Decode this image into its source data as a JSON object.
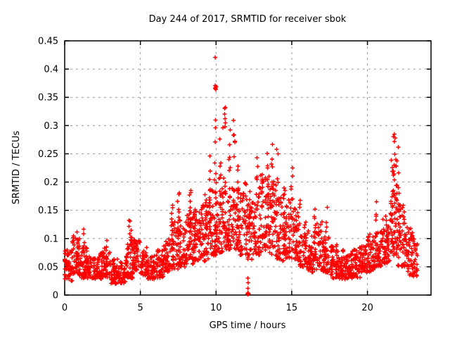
{
  "chart_data": {
    "type": "scatter",
    "title": "Day 244 of 2017, SRMTID for receiver sbok",
    "xlabel": "GPS time / hours",
    "ylabel": "SRMTID / TECUs",
    "xlim": [
      0,
      24.2
    ],
    "ylim": [
      0,
      0.45
    ],
    "xticks": [
      [
        0,
        "0"
      ],
      [
        5,
        "5"
      ],
      [
        10,
        "10"
      ],
      [
        15,
        "15"
      ],
      [
        20,
        "20"
      ]
    ],
    "yticks": [
      [
        0,
        "0"
      ],
      [
        0.05,
        "0.05"
      ],
      [
        0.1,
        "0.1"
      ],
      [
        0.15,
        "0.15"
      ],
      [
        0.2,
        "0.2"
      ],
      [
        0.25,
        "0.25"
      ],
      [
        0.3,
        "0.3"
      ],
      [
        0.35,
        "0.35"
      ],
      [
        0.4,
        "0.4"
      ],
      [
        0.45,
        "0.45"
      ]
    ],
    "grid": true,
    "legend": "none",
    "marker": {
      "shape": "plus",
      "color": "#ff0000",
      "size": 7
    },
    "grid_color": "#9a9a9a",
    "border_color": "#000000",
    "band_profile": [
      [
        0.0,
        0.5,
        0.025,
        0.08,
        50
      ],
      [
        0.5,
        1.0,
        0.035,
        0.105,
        50
      ],
      [
        1.0,
        1.5,
        0.03,
        0.09,
        50
      ],
      [
        1.5,
        2.0,
        0.03,
        0.07,
        45
      ],
      [
        2.0,
        2.5,
        0.028,
        0.075,
        45
      ],
      [
        2.5,
        3.0,
        0.03,
        0.085,
        45
      ],
      [
        3.0,
        3.5,
        0.02,
        0.065,
        45
      ],
      [
        3.5,
        4.0,
        0.02,
        0.06,
        45
      ],
      [
        4.0,
        4.5,
        0.03,
        0.09,
        48
      ],
      [
        4.5,
        5.0,
        0.04,
        0.1,
        48
      ],
      [
        5.0,
        5.5,
        0.035,
        0.085,
        45
      ],
      [
        5.5,
        6.0,
        0.028,
        0.07,
        45
      ],
      [
        6.0,
        6.5,
        0.03,
        0.08,
        45
      ],
      [
        6.5,
        7.0,
        0.04,
        0.1,
        48
      ],
      [
        7.0,
        7.5,
        0.045,
        0.13,
        50
      ],
      [
        7.5,
        8.0,
        0.05,
        0.14,
        50
      ],
      [
        8.0,
        8.5,
        0.055,
        0.15,
        52
      ],
      [
        8.5,
        9.0,
        0.06,
        0.155,
        52
      ],
      [
        9.0,
        9.5,
        0.06,
        0.16,
        52
      ],
      [
        9.5,
        10.0,
        0.07,
        0.19,
        52
      ],
      [
        10.0,
        10.5,
        0.075,
        0.21,
        52
      ],
      [
        10.5,
        11.0,
        0.08,
        0.2,
        52
      ],
      [
        11.0,
        11.5,
        0.08,
        0.19,
        50
      ],
      [
        11.5,
        12.0,
        0.07,
        0.2,
        50
      ],
      [
        12.0,
        12.5,
        0.06,
        0.17,
        48
      ],
      [
        12.5,
        13.0,
        0.07,
        0.19,
        50
      ],
      [
        13.0,
        13.5,
        0.08,
        0.21,
        50
      ],
      [
        13.5,
        14.0,
        0.07,
        0.21,
        50
      ],
      [
        14.0,
        14.5,
        0.06,
        0.18,
        50
      ],
      [
        14.5,
        15.0,
        0.065,
        0.17,
        50
      ],
      [
        15.0,
        15.5,
        0.06,
        0.155,
        50
      ],
      [
        15.5,
        16.0,
        0.05,
        0.13,
        48
      ],
      [
        16.0,
        16.5,
        0.04,
        0.115,
        48
      ],
      [
        16.5,
        17.0,
        0.045,
        0.13,
        48
      ],
      [
        17.0,
        17.5,
        0.04,
        0.105,
        46
      ],
      [
        17.5,
        18.0,
        0.03,
        0.09,
        46
      ],
      [
        18.0,
        18.5,
        0.028,
        0.08,
        46
      ],
      [
        18.5,
        19.0,
        0.028,
        0.078,
        46
      ],
      [
        19.0,
        19.5,
        0.03,
        0.085,
        46
      ],
      [
        19.5,
        20.0,
        0.04,
        0.09,
        46
      ],
      [
        20.0,
        20.5,
        0.04,
        0.105,
        48
      ],
      [
        20.5,
        21.0,
        0.05,
        0.115,
        48
      ],
      [
        21.0,
        21.5,
        0.055,
        0.14,
        48
      ],
      [
        21.5,
        22.0,
        0.07,
        0.19,
        50
      ],
      [
        22.0,
        22.5,
        0.05,
        0.16,
        48
      ],
      [
        22.5,
        23.0,
        0.035,
        0.12,
        46
      ],
      [
        23.0,
        23.3,
        0.03,
        0.1,
        28
      ]
    ],
    "spike_columns": [
      [
        0.85,
        0.08,
        0.115,
        6
      ],
      [
        1.25,
        0.08,
        0.12,
        5
      ],
      [
        2.8,
        0.07,
        0.1,
        4
      ],
      [
        4.3,
        0.09,
        0.135,
        7
      ],
      [
        4.45,
        0.08,
        0.115,
        5
      ],
      [
        6.6,
        0.08,
        0.1,
        3
      ],
      [
        7.1,
        0.1,
        0.165,
        7
      ],
      [
        7.5,
        0.1,
        0.19,
        8
      ],
      [
        8.3,
        0.12,
        0.21,
        8
      ],
      [
        8.6,
        0.1,
        0.155,
        6
      ],
      [
        9.3,
        0.13,
        0.2,
        7
      ],
      [
        9.6,
        0.12,
        0.25,
        8
      ],
      [
        9.95,
        0.15,
        0.31,
        9
      ],
      [
        10.3,
        0.15,
        0.3,
        7
      ],
      [
        10.6,
        0.18,
        0.335,
        8
      ],
      [
        10.9,
        0.16,
        0.3,
        7
      ],
      [
        11.2,
        0.15,
        0.31,
        7
      ],
      [
        11.45,
        0.17,
        0.25,
        6
      ],
      [
        12.3,
        0.12,
        0.185,
        5
      ],
      [
        12.7,
        0.15,
        0.25,
        7
      ],
      [
        13.0,
        0.15,
        0.24,
        6
      ],
      [
        13.4,
        0.16,
        0.255,
        7
      ],
      [
        13.7,
        0.15,
        0.28,
        8
      ],
      [
        14.05,
        0.14,
        0.26,
        6
      ],
      [
        14.5,
        0.13,
        0.21,
        5
      ],
      [
        15.0,
        0.14,
        0.225,
        5
      ],
      [
        15.55,
        0.12,
        0.19,
        4
      ],
      [
        16.5,
        0.1,
        0.155,
        4
      ],
      [
        17.3,
        0.1,
        0.155,
        3
      ],
      [
        20.1,
        0.09,
        0.125,
        3
      ],
      [
        20.6,
        0.1,
        0.17,
        4
      ],
      [
        21.6,
        0.1,
        0.245,
        10
      ],
      [
        21.75,
        0.14,
        0.285,
        12
      ],
      [
        21.9,
        0.13,
        0.27,
        8
      ],
      [
        22.1,
        0.1,
        0.22,
        7
      ],
      [
        22.4,
        0.08,
        0.16,
        5
      ],
      [
        22.6,
        0.07,
        0.13,
        4
      ]
    ],
    "outlier_points": [
      [
        9.95,
        0.421
      ],
      [
        9.93,
        0.371
      ],
      [
        9.96,
        0.367
      ],
      [
        9.98,
        0.364
      ],
      [
        10.0,
        0.369
      ],
      [
        9.94,
        0.366
      ],
      [
        10.62,
        0.332
      ],
      [
        11.15,
        0.309
      ],
      [
        10.25,
        0.276
      ],
      [
        10.45,
        0.296
      ],
      [
        12.08,
        0.002
      ],
      [
        12.1,
        0.001
      ],
      [
        12.12,
        0.003
      ],
      [
        12.1,
        0.004
      ],
      [
        12.14,
        0.002
      ],
      [
        12.11,
        0.012
      ],
      [
        12.13,
        0.022
      ],
      [
        12.09,
        0.03
      ],
      [
        15.05,
        0.225
      ],
      [
        17.35,
        0.155
      ],
      [
        21.78,
        0.285
      ],
      [
        21.82,
        0.278
      ],
      [
        22.05,
        0.262
      ]
    ]
  }
}
